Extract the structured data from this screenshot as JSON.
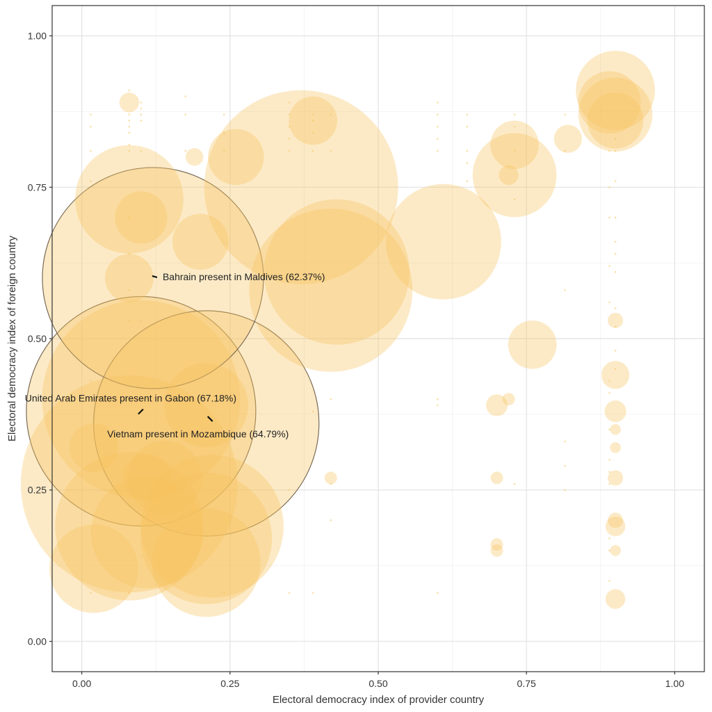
{
  "chart_data": {
    "type": "scatter",
    "title": "",
    "xlabel": "Electoral democracy index of provider country",
    "ylabel": "Electoral democracy index of foreign country",
    "xlim": [
      -0.05,
      1.05
    ],
    "ylim": [
      -0.05,
      1.05
    ],
    "x_ticks": [
      0.0,
      0.25,
      0.5,
      0.75,
      1.0
    ],
    "x_tick_labels": [
      "0.00",
      "0.25",
      "0.50",
      "0.75",
      "1.00"
    ],
    "y_ticks": [
      0.0,
      0.25,
      0.5,
      0.75,
      1.0
    ],
    "y_tick_labels": [
      "0.00",
      "0.25",
      "0.50",
      "0.75",
      "1.00"
    ],
    "grid": true,
    "legend": "none",
    "point_color": "#F5C45E",
    "highlight_stroke": "#7a6a55",
    "size_note": "bubble size = share of presence (%)",
    "points": [
      {
        "x": 0.1,
        "y": 0.38,
        "size": 67.18,
        "highlight": true
      },
      {
        "x": 0.21,
        "y": 0.36,
        "size": 64.79,
        "highlight": true
      },
      {
        "x": 0.12,
        "y": 0.6,
        "size": 62.37,
        "highlight": true
      },
      {
        "x": 0.08,
        "y": 0.26,
        "size": 60
      },
      {
        "x": 0.1,
        "y": 0.4,
        "size": 50
      },
      {
        "x": 0.37,
        "y": 0.75,
        "size": 48
      },
      {
        "x": 0.42,
        "y": 0.58,
        "size": 34
      },
      {
        "x": 0.43,
        "y": 0.61,
        "size": 27
      },
      {
        "x": 0.08,
        "y": 0.19,
        "size": 28
      },
      {
        "x": 0.22,
        "y": 0.19,
        "size": 26
      },
      {
        "x": 0.21,
        "y": 0.17,
        "size": 22
      },
      {
        "x": 0.08,
        "y": 0.73,
        "size": 15
      },
      {
        "x": 0.11,
        "y": 0.18,
        "size": 16
      },
      {
        "x": 0.21,
        "y": 0.13,
        "size": 15
      },
      {
        "x": 0.61,
        "y": 0.66,
        "size": 17
      },
      {
        "x": 0.73,
        "y": 0.77,
        "size": 9
      },
      {
        "x": 0.02,
        "y": 0.12,
        "size": 10
      },
      {
        "x": 0.14,
        "y": 0.27,
        "size": 7
      },
      {
        "x": 0.21,
        "y": 0.39,
        "size": 9
      },
      {
        "x": 0.9,
        "y": 0.91,
        "size": 8
      },
      {
        "x": 0.9,
        "y": 0.87,
        "size": 7
      },
      {
        "x": 0.89,
        "y": 0.89,
        "size": 5
      },
      {
        "x": 0.9,
        "y": 0.86,
        "size": 4
      },
      {
        "x": 0.2,
        "y": 0.66,
        "size": 4
      },
      {
        "x": 0.26,
        "y": 0.8,
        "size": 4
      },
      {
        "x": 0.1,
        "y": 0.7,
        "size": 3.5
      },
      {
        "x": 0.08,
        "y": 0.6,
        "size": 3
      },
      {
        "x": 0.39,
        "y": 0.86,
        "size": 3
      },
      {
        "x": 0.73,
        "y": 0.82,
        "size": 3
      },
      {
        "x": 0.76,
        "y": 0.49,
        "size": 3
      },
      {
        "x": 0.02,
        "y": 0.32,
        "size": 3
      },
      {
        "x": 0.11,
        "y": 0.27,
        "size": 3
      },
      {
        "x": 0.82,
        "y": 0.83,
        "size": 1
      },
      {
        "x": 0.9,
        "y": 0.44,
        "size": 1
      },
      {
        "x": 0.7,
        "y": 0.39,
        "size": 0.6
      },
      {
        "x": 0.9,
        "y": 0.38,
        "size": 0.6
      },
      {
        "x": 0.9,
        "y": 0.19,
        "size": 0.5
      },
      {
        "x": 0.9,
        "y": 0.07,
        "size": 0.5
      },
      {
        "x": 0.9,
        "y": 0.53,
        "size": 0.3
      },
      {
        "x": 0.9,
        "y": 0.2,
        "size": 0.3
      },
      {
        "x": 0.9,
        "y": 0.27,
        "size": 0.3
      },
      {
        "x": 0.72,
        "y": 0.77,
        "size": 0.5
      },
      {
        "x": 0.08,
        "y": 0.89,
        "size": 0.5
      },
      {
        "x": 0.72,
        "y": 0.4,
        "size": 0.2
      },
      {
        "x": 0.7,
        "y": 0.27,
        "size": 0.2
      },
      {
        "x": 0.7,
        "y": 0.16,
        "size": 0.2
      },
      {
        "x": 0.7,
        "y": 0.15,
        "size": 0.2
      },
      {
        "x": 0.42,
        "y": 0.27,
        "size": 0.2
      },
      {
        "x": 0.19,
        "y": 0.8,
        "size": 0.4
      },
      {
        "x": 0.9,
        "y": 0.35,
        "size": 0.15
      },
      {
        "x": 0.9,
        "y": 0.32,
        "size": 0.15
      },
      {
        "x": 0.9,
        "y": 0.15,
        "size": 0.15
      }
    ],
    "small_dot_columns": [
      {
        "x": 0.015,
        "ys": [
          0.87,
          0.85,
          0.81,
          0.76,
          0.43,
          0.4,
          0.08
        ]
      },
      {
        "x": 0.08,
        "ys": [
          0.91,
          0.87,
          0.86,
          0.85,
          0.84,
          0.82,
          0.81,
          0.7,
          0.64,
          0.58,
          0.53,
          0.08
        ]
      },
      {
        "x": 0.1,
        "ys": [
          0.89,
          0.88,
          0.87,
          0.86,
          0.81,
          0.53,
          0.14
        ]
      },
      {
        "x": 0.175,
        "ys": [
          0.9,
          0.87,
          0.81
        ]
      },
      {
        "x": 0.24,
        "ys": [
          0.87,
          0.84,
          0.81,
          0.08
        ]
      },
      {
        "x": 0.35,
        "ys": [
          0.89,
          0.87,
          0.85,
          0.83,
          0.81,
          0.25,
          0.08
        ]
      },
      {
        "x": 0.39,
        "ys": [
          0.87,
          0.86,
          0.84,
          0.81,
          0.38,
          0.08
        ]
      },
      {
        "x": 0.42,
        "ys": [
          0.87,
          0.81,
          0.4,
          0.26,
          0.2
        ]
      },
      {
        "x": 0.6,
        "ys": [
          0.89,
          0.87,
          0.85,
          0.83,
          0.81,
          0.4,
          0.39,
          0.08
        ]
      },
      {
        "x": 0.65,
        "ys": [
          0.87,
          0.85,
          0.81,
          0.79,
          0.76
        ]
      },
      {
        "x": 0.73,
        "ys": [
          0.87,
          0.85,
          0.81,
          0.73,
          0.26
        ]
      },
      {
        "x": 0.815,
        "ys": [
          0.87,
          0.81,
          0.58,
          0.33,
          0.29,
          0.25
        ]
      },
      {
        "x": 0.89,
        "ys": [
          0.81,
          0.75,
          0.7,
          0.62,
          0.56,
          0.43,
          0.41,
          0.35,
          0.3,
          0.28,
          0.26,
          0.17,
          0.15,
          0.1
        ]
      },
      {
        "x": 0.9,
        "ys": [
          0.83,
          0.81,
          0.76,
          0.7,
          0.66,
          0.64,
          0.61,
          0.55,
          0.52,
          0.48,
          0.45
        ]
      }
    ],
    "annotations": [
      {
        "text": "Bahrain present in Maldives (62.37%)",
        "x": 0.12,
        "y": 0.6,
        "anchor": "start",
        "side": "right"
      },
      {
        "text": "United Arab Emirates present in Gabon (67.18%)",
        "x": 0.1,
        "y": 0.38,
        "anchor": "middle",
        "side": "above"
      },
      {
        "text": "Vietnam present in Mozambique (64.79%)",
        "x": 0.21,
        "y": 0.36,
        "anchor": "middle",
        "side": "below"
      }
    ]
  }
}
